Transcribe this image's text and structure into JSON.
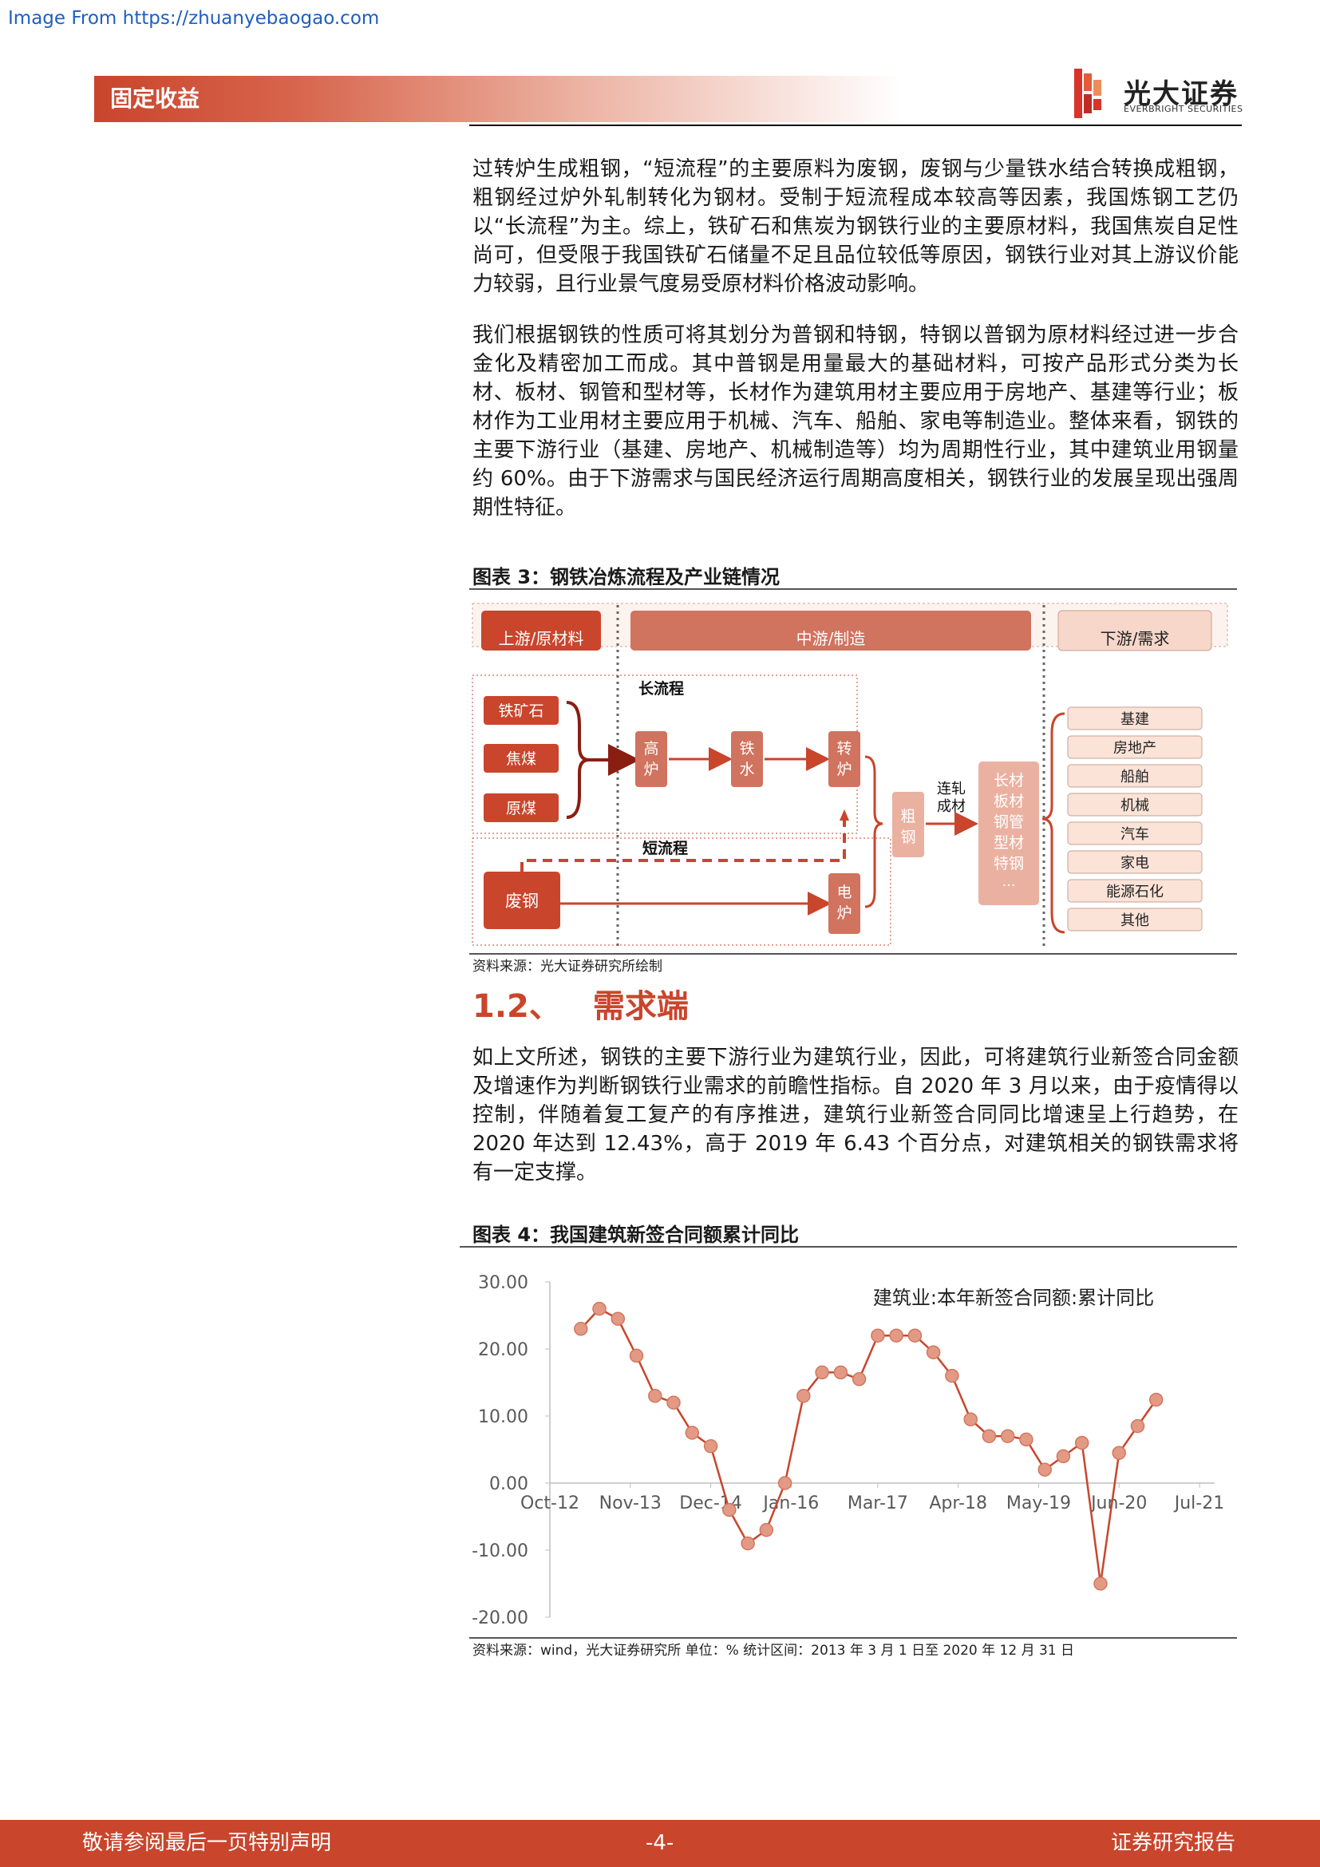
{
  "watermark": "Image From https://zhuanyebaogao.com",
  "header": {
    "section_label": "固定收益",
    "brand_cn": "光大证券",
    "brand_en": "EVERBRIGHT SECURITIES",
    "colors": {
      "accent": "#c9452c"
    }
  },
  "body": {
    "para1": "过转炉生成粗钢，“短流程”的主要原料为废钢，废钢与少量铁水结合转换成粗钢，粗钢经过炉外轧制转化为钢材。受制于短流程成本较高等因素，我国炼钢工艺仍以“长流程”为主。综上，铁矿石和焦炭为钢铁行业的主要原材料，我国焦炭自足性尚可，但受限于我国铁矿石储量不足且品位较低等原因，钢铁行业对其上游议价能力较弱，且行业景气度易受原材料价格波动影响。",
    "para2": "我们根据钢铁的性质可将其划分为普钢和特钢，特钢以普钢为原材料经过进一步合金化及精密加工而成。其中普钢是用量最大的基础材料，可按产品形式分类为长材、板材、钢管和型材等，长材作为建筑用材主要应用于房地产、基建等行业；板材作为工业用材主要应用于机械、汽车、船舶、家电等制造业。整体来看，钢铁的主要下游行业（基建、房地产、机械制造等）均为周期性行业，其中建筑业用钢量约 60%。由于下游需求与国民经济运行周期高度相关，钢铁行业的发展呈现出强周期性特征。",
    "para3": "如上文所述，钢铁的主要下游行业为建筑行业，因此，可将建筑行业新签合同金额及增速作为判断钢铁行业需求的前瞻性指标。自 2020 年 3 月以来，由于疫情得以控制，伴随着复工复产的有序推进，建筑行业新签合同同比增速呈上行趋势，在 2020 年达到 12.43%，高于 2019 年 6.43 个百分点，对建筑相关的钢铁需求将有一定支撑。"
  },
  "figure3": {
    "title": "图表 3：钢铁冶炼流程及产业链情况",
    "source": "资料来源：光大证券研究所绘制",
    "stages": {
      "upstream": "上游/原材料",
      "midstream": "中游/制造",
      "downstream": "下游/需求"
    },
    "long_process": "长流程",
    "short_process": "短流程",
    "raw_materials": [
      "铁矿石",
      "焦煤",
      "原煤"
    ],
    "scrap": "废钢",
    "blast_furnace": [
      "高",
      "炉"
    ],
    "molten_iron": [
      "铁",
      "水"
    ],
    "converter": [
      "转",
      "炉"
    ],
    "electric_furnace": [
      "电",
      "炉"
    ],
    "crude_steel": [
      "粗",
      "钢"
    ],
    "rolling": [
      "连轧",
      "成材"
    ],
    "products": [
      "长材",
      "板材",
      "钢管",
      "型材",
      "特钢",
      "…"
    ],
    "demand": [
      "基建",
      "房地产",
      "船舶",
      "机械",
      "汽车",
      "家电",
      "能源石化",
      "其他"
    ]
  },
  "section": {
    "number": "1.2、",
    "title": "需求端"
  },
  "figure4": {
    "title": "图表 4：我国建筑新签合同额累计同比",
    "source": "资料来源：wind，光大证券研究所    单位：%    统计区间：2013 年 3 月 1 日至 2020 年 12 月 31 日"
  },
  "chart_data": {
    "type": "line",
    "title": "建筑业:本年新签合同额:累计同比",
    "xlabel": "",
    "ylabel": "",
    "x_tick_labels": [
      "Oct-12",
      "Nov-13",
      "Dec-14",
      "Jan-16",
      "Mar-17",
      "Apr-18",
      "May-19",
      "Jun-20",
      "Jul-21"
    ],
    "y_tick_labels": [
      "30.00",
      "20.00",
      "10.00",
      "0.00",
      "-10.00",
      "-20.00"
    ],
    "ylim": [
      -20,
      30
    ],
    "grid": false,
    "color": "#c9452c",
    "series": [
      {
        "x": [
          "2013-03",
          "2013-06",
          "2013-09",
          "2013-12",
          "2014-03",
          "2014-06",
          "2014-09",
          "2014-12",
          "2015-03",
          "2015-06",
          "2015-09",
          "2015-12",
          "2016-03",
          "2016-06",
          "2016-09",
          "2016-12",
          "2017-03",
          "2017-06",
          "2017-09",
          "2017-12",
          "2018-03",
          "2018-06",
          "2018-09",
          "2018-12",
          "2019-03",
          "2019-06",
          "2019-09",
          "2019-12",
          "2020-03",
          "2020-06",
          "2020-09",
          "2020-12"
        ],
        "y": [
          23.0,
          26.0,
          24.5,
          19.0,
          13.0,
          12.0,
          7.5,
          5.5,
          -4.0,
          -9.0,
          -7.0,
          0.0,
          13.0,
          16.5,
          16.5,
          15.5,
          22.0,
          22.0,
          22.0,
          19.5,
          16.0,
          9.5,
          7.0,
          7.0,
          6.5,
          2.0,
          4.0,
          6.0,
          -15.0,
          4.5,
          8.5,
          12.43
        ]
      }
    ]
  },
  "footer": {
    "left": "敬请参阅最后一页特别声明",
    "center": "-4-",
    "right": "证券研究报告"
  }
}
